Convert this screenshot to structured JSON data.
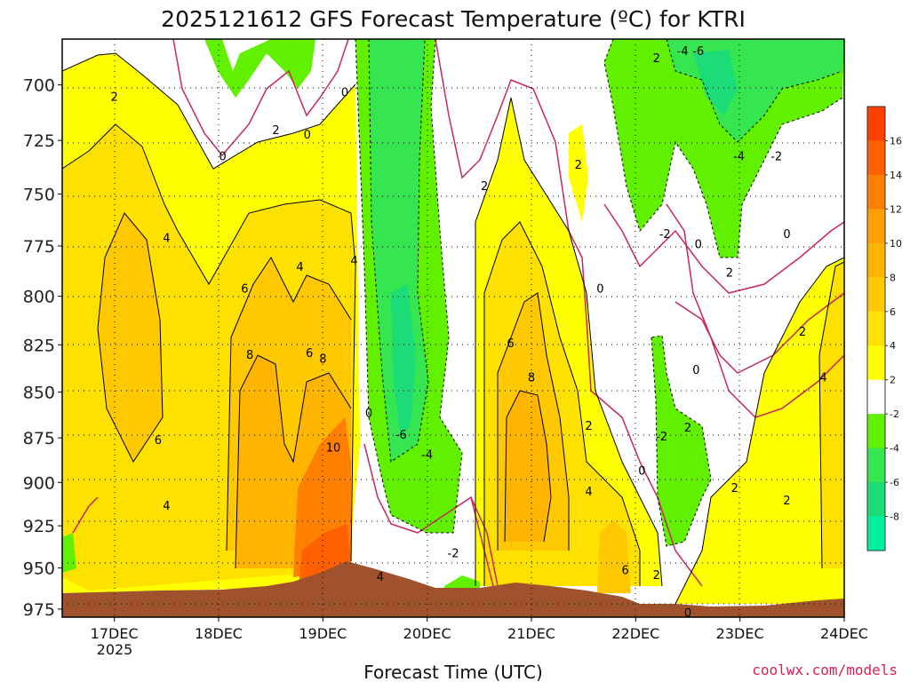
{
  "chart_data": {
    "type": "heatmap",
    "title": "2025121612 GFS Forecast Temperature (ºC) for KTRI",
    "xlabel": "Forecast Time (UTC)",
    "ylabel": "",
    "watermark": "coolwx.com/models",
    "x_ticks": [
      "17DEC",
      "18DEC",
      "19DEC",
      "20DEC",
      "21DEC",
      "22DEC",
      "23DEC",
      "24DEC"
    ],
    "x_subtick_label": "2025",
    "x_range_days": [
      16.5,
      24.0
    ],
    "y_ticks": [
      700,
      725,
      750,
      775,
      800,
      825,
      850,
      875,
      900,
      925,
      950,
      975
    ],
    "y_range_hpa": [
      680,
      980
    ],
    "colorbar": {
      "labels": [
        16,
        14,
        12,
        10,
        8,
        6,
        4,
        2,
        -2,
        -4,
        -6,
        -8
      ],
      "colors": [
        "#ff4000",
        "#ff6000",
        "#ff8000",
        "#ffa000",
        "#ffb400",
        "#ffc800",
        "#ffe100",
        "#ffff00",
        "#ffffff",
        "#60f000",
        "#36e650",
        "#1cdc78",
        "#00f0a0"
      ]
    },
    "colors": {
      "frame": "#000000",
      "terrain": "#a0522d",
      "freezing_line": "#c8285a",
      "watermark": "#dc1e50"
    },
    "contour_labels": [
      {
        "text": "2",
        "day": 17.0,
        "p": 705
      },
      {
        "text": "0",
        "day": 18.04,
        "p": 732
      },
      {
        "text": "2",
        "day": 18.55,
        "p": 720
      },
      {
        "text": "0",
        "day": 18.85,
        "p": 722
      },
      {
        "text": "0",
        "day": 19.21,
        "p": 703
      },
      {
        "text": "4",
        "day": 17.5,
        "p": 771
      },
      {
        "text": "4",
        "day": 18.78,
        "p": 785
      },
      {
        "text": "4",
        "day": 19.3,
        "p": 782
      },
      {
        "text": "6",
        "day": 18.25,
        "p": 796
      },
      {
        "text": "8",
        "day": 18.3,
        "p": 830
      },
      {
        "text": "6",
        "day": 18.87,
        "p": 829
      },
      {
        "text": "8",
        "day": 19.0,
        "p": 832
      },
      {
        "text": "10",
        "day": 19.1,
        "p": 880
      },
      {
        "text": "6",
        "day": 17.42,
        "p": 876
      },
      {
        "text": "4",
        "day": 17.5,
        "p": 913
      },
      {
        "text": "0",
        "day": 19.44,
        "p": 861
      },
      {
        "text": "-6",
        "day": 19.75,
        "p": 873
      },
      {
        "text": "-4",
        "day": 20.0,
        "p": 884
      },
      {
        "text": "-2",
        "day": 20.25,
        "p": 941
      },
      {
        "text": "4",
        "day": 19.55,
        "p": 955
      },
      {
        "text": "2",
        "day": 20.55,
        "p": 746
      },
      {
        "text": "2",
        "day": 21.45,
        "p": 736
      },
      {
        "text": "0",
        "day": 21.66,
        "p": 796
      },
      {
        "text": "6",
        "day": 20.8,
        "p": 824
      },
      {
        "text": "8",
        "day": 21.0,
        "p": 842
      },
      {
        "text": "2",
        "day": 21.55,
        "p": 868
      },
      {
        "text": "4",
        "day": 21.55,
        "p": 905
      },
      {
        "text": "6",
        "day": 21.9,
        "p": 951
      },
      {
        "text": "2",
        "day": 22.2,
        "p": 954
      },
      {
        "text": "0",
        "day": 22.06,
        "p": 893
      },
      {
        "text": "-2",
        "day": 22.25,
        "p": 874
      },
      {
        "text": "2",
        "day": 22.5,
        "p": 869
      },
      {
        "text": "0",
        "day": 22.58,
        "p": 838
      },
      {
        "text": "2",
        "day": 22.2,
        "p": 688
      },
      {
        "text": "-4",
        "day": 22.45,
        "p": 685
      },
      {
        "text": "-6",
        "day": 22.6,
        "p": 685
      },
      {
        "text": "-4",
        "day": 22.99,
        "p": 732
      },
      {
        "text": "-2",
        "day": 23.35,
        "p": 732
      },
      {
        "text": "-2",
        "day": 22.28,
        "p": 769
      },
      {
        "text": "0",
        "day": 22.6,
        "p": 774
      },
      {
        "text": "2",
        "day": 22.9,
        "p": 788
      },
      {
        "text": "0",
        "day": 23.45,
        "p": 769
      },
      {
        "text": "2",
        "day": 23.6,
        "p": 818
      },
      {
        "text": "4",
        "day": 23.8,
        "p": 842
      },
      {
        "text": "2",
        "day": 22.95,
        "p": 903
      },
      {
        "text": "2",
        "day": 23.45,
        "p": 910
      },
      {
        "text": "0",
        "day": 22.5,
        "p": 977
      }
    ]
  }
}
